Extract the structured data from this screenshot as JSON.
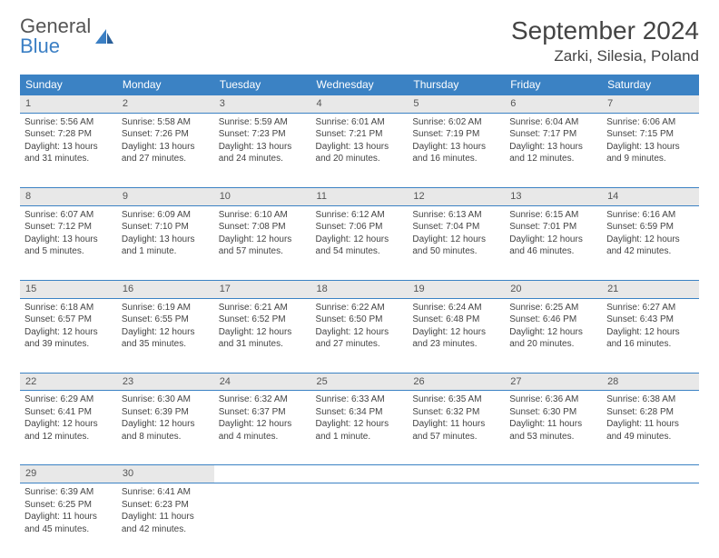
{
  "logo": {
    "line1": "General",
    "line2": "Blue"
  },
  "title": "September 2024",
  "location": "Zarki, Silesia, Poland",
  "colors": {
    "header_bg": "#3b82c4",
    "header_text": "#ffffff",
    "daynum_bg": "#e8e8e8",
    "text": "#444444",
    "logo_gray": "#555555",
    "logo_blue": "#3b7fc4"
  },
  "weekdays": [
    "Sunday",
    "Monday",
    "Tuesday",
    "Wednesday",
    "Thursday",
    "Friday",
    "Saturday"
  ],
  "weeks": [
    [
      {
        "day": "1",
        "sunrise": "Sunrise: 5:56 AM",
        "sunset": "Sunset: 7:28 PM",
        "daylight1": "Daylight: 13 hours",
        "daylight2": "and 31 minutes."
      },
      {
        "day": "2",
        "sunrise": "Sunrise: 5:58 AM",
        "sunset": "Sunset: 7:26 PM",
        "daylight1": "Daylight: 13 hours",
        "daylight2": "and 27 minutes."
      },
      {
        "day": "3",
        "sunrise": "Sunrise: 5:59 AM",
        "sunset": "Sunset: 7:23 PM",
        "daylight1": "Daylight: 13 hours",
        "daylight2": "and 24 minutes."
      },
      {
        "day": "4",
        "sunrise": "Sunrise: 6:01 AM",
        "sunset": "Sunset: 7:21 PM",
        "daylight1": "Daylight: 13 hours",
        "daylight2": "and 20 minutes."
      },
      {
        "day": "5",
        "sunrise": "Sunrise: 6:02 AM",
        "sunset": "Sunset: 7:19 PM",
        "daylight1": "Daylight: 13 hours",
        "daylight2": "and 16 minutes."
      },
      {
        "day": "6",
        "sunrise": "Sunrise: 6:04 AM",
        "sunset": "Sunset: 7:17 PM",
        "daylight1": "Daylight: 13 hours",
        "daylight2": "and 12 minutes."
      },
      {
        "day": "7",
        "sunrise": "Sunrise: 6:06 AM",
        "sunset": "Sunset: 7:15 PM",
        "daylight1": "Daylight: 13 hours",
        "daylight2": "and 9 minutes."
      }
    ],
    [
      {
        "day": "8",
        "sunrise": "Sunrise: 6:07 AM",
        "sunset": "Sunset: 7:12 PM",
        "daylight1": "Daylight: 13 hours",
        "daylight2": "and 5 minutes."
      },
      {
        "day": "9",
        "sunrise": "Sunrise: 6:09 AM",
        "sunset": "Sunset: 7:10 PM",
        "daylight1": "Daylight: 13 hours",
        "daylight2": "and 1 minute."
      },
      {
        "day": "10",
        "sunrise": "Sunrise: 6:10 AM",
        "sunset": "Sunset: 7:08 PM",
        "daylight1": "Daylight: 12 hours",
        "daylight2": "and 57 minutes."
      },
      {
        "day": "11",
        "sunrise": "Sunrise: 6:12 AM",
        "sunset": "Sunset: 7:06 PM",
        "daylight1": "Daylight: 12 hours",
        "daylight2": "and 54 minutes."
      },
      {
        "day": "12",
        "sunrise": "Sunrise: 6:13 AM",
        "sunset": "Sunset: 7:04 PM",
        "daylight1": "Daylight: 12 hours",
        "daylight2": "and 50 minutes."
      },
      {
        "day": "13",
        "sunrise": "Sunrise: 6:15 AM",
        "sunset": "Sunset: 7:01 PM",
        "daylight1": "Daylight: 12 hours",
        "daylight2": "and 46 minutes."
      },
      {
        "day": "14",
        "sunrise": "Sunrise: 6:16 AM",
        "sunset": "Sunset: 6:59 PM",
        "daylight1": "Daylight: 12 hours",
        "daylight2": "and 42 minutes."
      }
    ],
    [
      {
        "day": "15",
        "sunrise": "Sunrise: 6:18 AM",
        "sunset": "Sunset: 6:57 PM",
        "daylight1": "Daylight: 12 hours",
        "daylight2": "and 39 minutes."
      },
      {
        "day": "16",
        "sunrise": "Sunrise: 6:19 AM",
        "sunset": "Sunset: 6:55 PM",
        "daylight1": "Daylight: 12 hours",
        "daylight2": "and 35 minutes."
      },
      {
        "day": "17",
        "sunrise": "Sunrise: 6:21 AM",
        "sunset": "Sunset: 6:52 PM",
        "daylight1": "Daylight: 12 hours",
        "daylight2": "and 31 minutes."
      },
      {
        "day": "18",
        "sunrise": "Sunrise: 6:22 AM",
        "sunset": "Sunset: 6:50 PM",
        "daylight1": "Daylight: 12 hours",
        "daylight2": "and 27 minutes."
      },
      {
        "day": "19",
        "sunrise": "Sunrise: 6:24 AM",
        "sunset": "Sunset: 6:48 PM",
        "daylight1": "Daylight: 12 hours",
        "daylight2": "and 23 minutes."
      },
      {
        "day": "20",
        "sunrise": "Sunrise: 6:25 AM",
        "sunset": "Sunset: 6:46 PM",
        "daylight1": "Daylight: 12 hours",
        "daylight2": "and 20 minutes."
      },
      {
        "day": "21",
        "sunrise": "Sunrise: 6:27 AM",
        "sunset": "Sunset: 6:43 PM",
        "daylight1": "Daylight: 12 hours",
        "daylight2": "and 16 minutes."
      }
    ],
    [
      {
        "day": "22",
        "sunrise": "Sunrise: 6:29 AM",
        "sunset": "Sunset: 6:41 PM",
        "daylight1": "Daylight: 12 hours",
        "daylight2": "and 12 minutes."
      },
      {
        "day": "23",
        "sunrise": "Sunrise: 6:30 AM",
        "sunset": "Sunset: 6:39 PM",
        "daylight1": "Daylight: 12 hours",
        "daylight2": "and 8 minutes."
      },
      {
        "day": "24",
        "sunrise": "Sunrise: 6:32 AM",
        "sunset": "Sunset: 6:37 PM",
        "daylight1": "Daylight: 12 hours",
        "daylight2": "and 4 minutes."
      },
      {
        "day": "25",
        "sunrise": "Sunrise: 6:33 AM",
        "sunset": "Sunset: 6:34 PM",
        "daylight1": "Daylight: 12 hours",
        "daylight2": "and 1 minute."
      },
      {
        "day": "26",
        "sunrise": "Sunrise: 6:35 AM",
        "sunset": "Sunset: 6:32 PM",
        "daylight1": "Daylight: 11 hours",
        "daylight2": "and 57 minutes."
      },
      {
        "day": "27",
        "sunrise": "Sunrise: 6:36 AM",
        "sunset": "Sunset: 6:30 PM",
        "daylight1": "Daylight: 11 hours",
        "daylight2": "and 53 minutes."
      },
      {
        "day": "28",
        "sunrise": "Sunrise: 6:38 AM",
        "sunset": "Sunset: 6:28 PM",
        "daylight1": "Daylight: 11 hours",
        "daylight2": "and 49 minutes."
      }
    ],
    [
      {
        "day": "29",
        "sunrise": "Sunrise: 6:39 AM",
        "sunset": "Sunset: 6:25 PM",
        "daylight1": "Daylight: 11 hours",
        "daylight2": "and 45 minutes."
      },
      {
        "day": "30",
        "sunrise": "Sunrise: 6:41 AM",
        "sunset": "Sunset: 6:23 PM",
        "daylight1": "Daylight: 11 hours",
        "daylight2": "and 42 minutes."
      },
      null,
      null,
      null,
      null,
      null
    ]
  ]
}
